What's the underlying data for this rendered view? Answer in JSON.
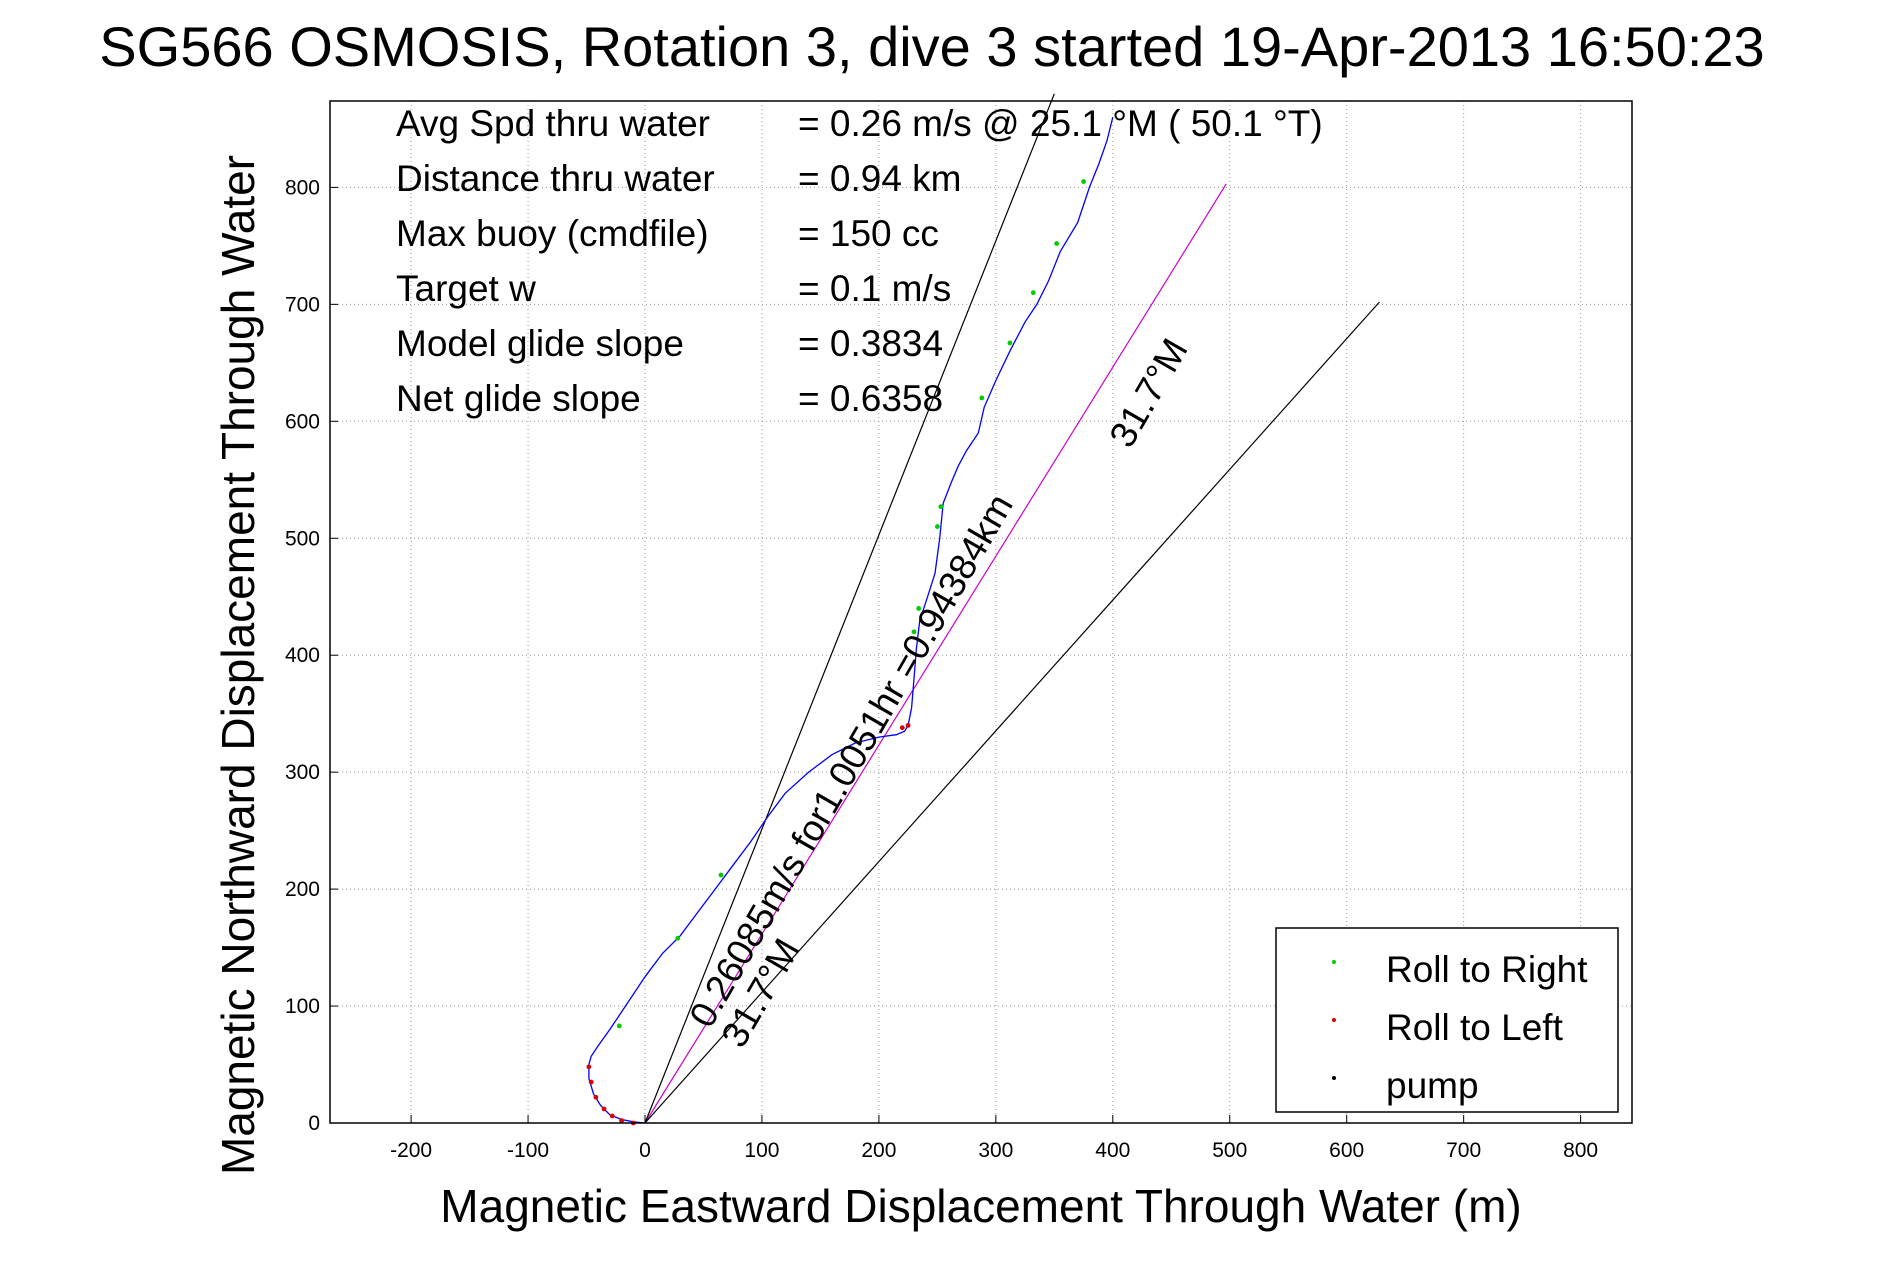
{
  "title": "SG566 OSMOSIS, Rotation 3, dive 3 started 19-Apr-2013 16:50:23",
  "stats": [
    {
      "label": "Avg Spd thru water",
      "value": "=  0.26 m/s @  25.1 °M ( 50.1 °T)"
    },
    {
      "label": "Distance thru water",
      "value": "=  0.94 km"
    },
    {
      "label": "Max buoy (cmdfile)",
      "value": "= 150 cc"
    },
    {
      "label": "Target w",
      "value": "= 0.1 m/s"
    },
    {
      "label": "Model glide slope",
      "value": "= 0.3834"
    },
    {
      "label": "Net glide slope",
      "value": "= 0.6358"
    }
  ],
  "annotations": {
    "speed_line": "0.26085m/s for1.0051hr =0.94384km",
    "heading_upper": "31.7°M",
    "heading_lower": "31.7°M"
  },
  "legend": [
    {
      "label": "Roll to Right",
      "color": "#00cc00"
    },
    {
      "label": "Roll to Left",
      "color": "#dd0000"
    },
    {
      "label": "pump",
      "color": "#000000"
    }
  ],
  "chart_data": {
    "type": "line",
    "title": "SG566 OSMOSIS, Rotation 3, dive 3 started 19-Apr-2013 16:50:23",
    "xlabel": "Magnetic Eastward Displacement Through Water (m)",
    "ylabel": "Magnetic Northward Displacement Through Water",
    "xlim": [
      -270,
      845
    ],
    "ylim": [
      -5,
      875
    ],
    "xticks": [
      -200,
      -100,
      0,
      100,
      200,
      300,
      400,
      500,
      600,
      700,
      800
    ],
    "yticks": [
      0,
      100,
      200,
      300,
      400,
      500,
      600,
      700,
      800
    ],
    "grid": true,
    "legend_position": "bottom-right",
    "track": {
      "color": "#0000ff",
      "x": [
        0,
        -10,
        -20,
        -30,
        -38,
        -44,
        -48,
        -48,
        -46,
        -40,
        -30,
        -20,
        -10,
        0,
        15,
        30,
        45,
        60,
        75,
        90,
        105,
        120,
        140,
        160,
        180,
        200,
        215,
        222,
        225,
        228,
        230,
        232,
        235,
        240,
        248,
        252,
        255,
        262,
        268,
        275,
        285,
        290,
        300,
        312,
        325,
        335,
        345,
        355,
        370,
        380,
        388,
        395,
        400
      ],
      "y": [
        0,
        1,
        3,
        7,
        15,
        25,
        38,
        50,
        57,
        66,
        80,
        95,
        110,
        125,
        145,
        160,
        180,
        200,
        220,
        240,
        262,
        282,
        300,
        315,
        325,
        330,
        332,
        335,
        340,
        355,
        380,
        405,
        430,
        445,
        470,
        500,
        530,
        548,
        562,
        575,
        590,
        612,
        635,
        660,
        685,
        700,
        720,
        745,
        770,
        800,
        820,
        840,
        860
      ]
    },
    "roll_right_x": [
      -22,
      28,
      65,
      230,
      234,
      250,
      253,
      288,
      312,
      332,
      352,
      375
    ],
    "roll_right_y": [
      83,
      158,
      212,
      420,
      440,
      510,
      527,
      620,
      667,
      710,
      752,
      805
    ],
    "roll_left_x": [
      -48,
      -46,
      -42,
      -35,
      -28,
      -20,
      -10,
      220,
      225
    ],
    "roll_left_y": [
      48,
      35,
      22,
      12,
      6,
      2,
      0,
      338,
      340
    ],
    "reference_lines": [
      {
        "name": "net",
        "color": "#cc00cc",
        "x": [
          0,
          497
        ],
        "y": [
          0,
          803
        ]
      },
      {
        "name": "left",
        "color": "#000000",
        "x": [
          0,
          350
        ],
        "y": [
          0,
          880
        ]
      },
      {
        "name": "right",
        "color": "#000000",
        "x": [
          0,
          628
        ],
        "y": [
          0,
          702
        ]
      }
    ]
  }
}
